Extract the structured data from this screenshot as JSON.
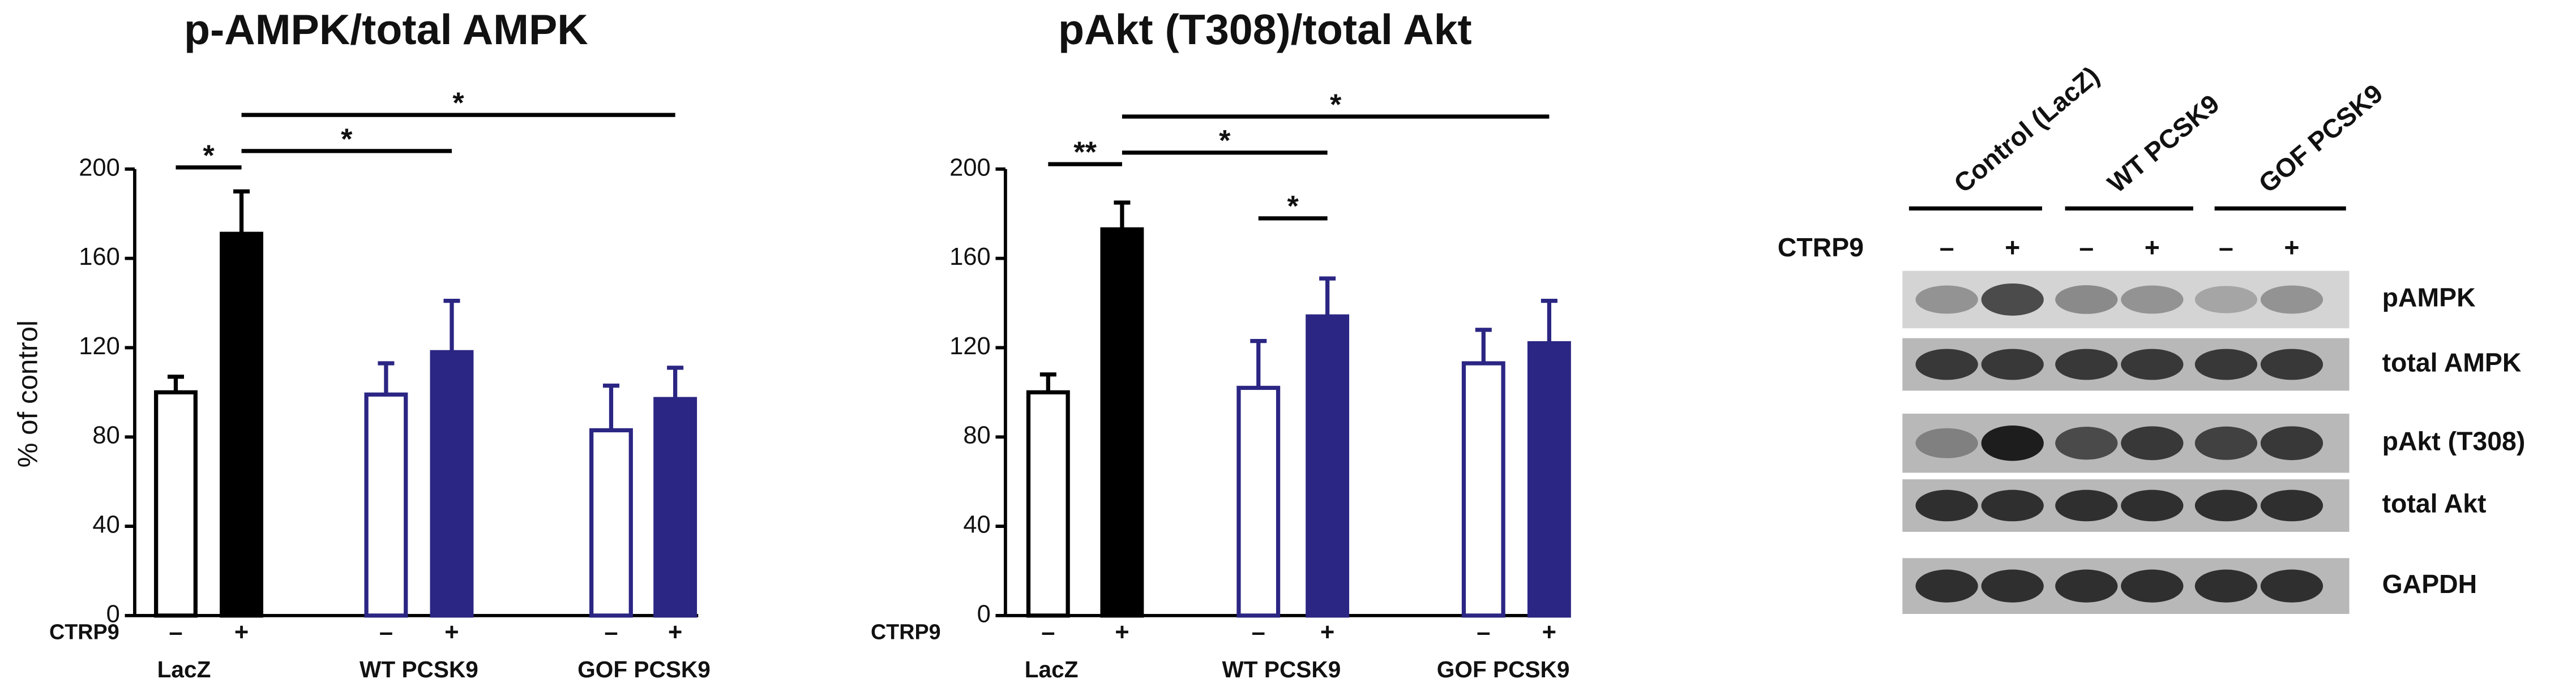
{
  "chart_data": [
    {
      "type": "bar",
      "title": "p-AMPK/total AMPK",
      "y_label": "% of control",
      "categories": [
        "–",
        "+",
        "–",
        "+",
        "–",
        "+"
      ],
      "values": [
        100,
        171,
        99,
        118,
        83,
        97
      ],
      "errors": [
        7,
        19,
        14,
        23,
        20,
        14
      ],
      "bar_fill": [
        "#ffffff",
        "#000000",
        "#ffffff",
        "#2b2683",
        "#ffffff",
        "#2b2683"
      ],
      "bar_stroke": [
        "#000000",
        "#000000",
        "#2b2683",
        "#2b2683",
        "#2b2683",
        "#2b2683"
      ],
      "factor_label": "CTRP9",
      "groups": [
        "LacZ",
        "WT PCSK9",
        "GOF PCSK9"
      ],
      "group_colors": [
        "#000000",
        "#2b2683",
        "#2b2683"
      ],
      "significance": [
        "*",
        "*",
        "*"
      ],
      "ylim": [
        0,
        200
      ],
      "yticks": [
        0,
        40,
        80,
        120,
        160,
        200
      ]
    },
    {
      "type": "bar",
      "title": "pAkt (T308)/total Akt",
      "categories": [
        "–",
        "+",
        "–",
        "+",
        "–",
        "+"
      ],
      "values": [
        100,
        173,
        102,
        134,
        113,
        122
      ],
      "errors": [
        8,
        12,
        21,
        17,
        15,
        19
      ],
      "bar_fill": [
        "#ffffff",
        "#000000",
        "#ffffff",
        "#2b2683",
        "#ffffff",
        "#2b2683"
      ],
      "bar_stroke": [
        "#000000",
        "#000000",
        "#2b2683",
        "#2b2683",
        "#2b2683",
        "#2b2683"
      ],
      "factor_label": "CTRP9",
      "groups": [
        "LacZ",
        "WT PCSK9",
        "GOF PCSK9"
      ],
      "group_colors": [
        "#000000",
        "#2b2683",
        "#2b2683"
      ],
      "significance": [
        "**",
        "*",
        "*",
        "*"
      ],
      "ylim": [
        0,
        200
      ],
      "yticks": [
        0,
        40,
        80,
        120,
        160,
        200
      ]
    }
  ],
  "blot": {
    "groups": [
      "Control (LacZ)",
      "WT PCSK9",
      "GOF PCSK9"
    ],
    "group_colors": [
      "#000000",
      "#2b2683",
      "#2b2683"
    ],
    "factor_label": "CTRP9",
    "lanes": [
      "–",
      "+",
      "–",
      "+",
      "–",
      "+"
    ],
    "rows": [
      "pAMPK",
      "total AMPK",
      "pAkt (T308)",
      "total Akt",
      "GAPDH"
    ]
  }
}
